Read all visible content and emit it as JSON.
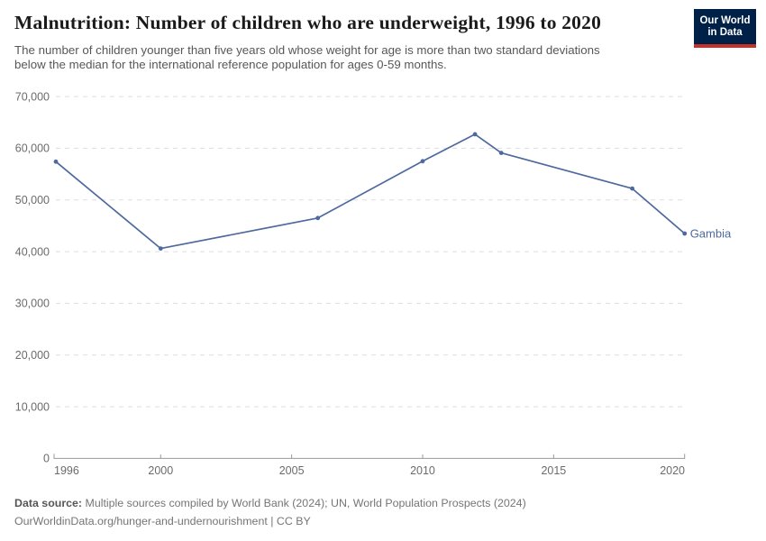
{
  "header": {
    "title": "Malnutrition: Number of children who are underweight, 1996 to 2020",
    "subtitle_line1": "The number of children younger than five years old whose weight for age is more than two standard deviations",
    "subtitle_line2": "below the median for the international reference population for ages 0-59 months."
  },
  "logo": {
    "line1": "Our World",
    "line2": "in Data",
    "bg_color": "#002147",
    "accent_color": "#c7312a"
  },
  "chart_data": {
    "type": "line",
    "title": "Malnutrition: Number of children who are underweight, 1996 to 2020",
    "entity_label": "Gambia",
    "series": [
      {
        "name": "Gambia",
        "color": "#4d699e",
        "x": [
          1996,
          2000,
          2006,
          2010,
          2012,
          2013,
          2018,
          2020
        ],
        "values": [
          57400,
          40600,
          46500,
          57500,
          62700,
          59100,
          52200,
          43500
        ]
      }
    ],
    "xlim": [
      1996,
      2020
    ],
    "ylim": [
      0,
      70000
    ],
    "xticks": [
      1996,
      2000,
      2005,
      2010,
      2015,
      2020
    ],
    "yticks": [
      0,
      10000,
      20000,
      30000,
      40000,
      50000,
      60000,
      70000
    ],
    "grid": "horizontal-dashed",
    "legend_position": "end-of-line-label",
    "colors": {
      "grid": "#dddddd",
      "axis": "#999999",
      "tick_text": "#6b6b6b"
    }
  },
  "footer": {
    "datasource_label": "Data source:",
    "datasource_text": " Multiple sources compiled by World Bank (2024); UN, World Population Prospects (2024)",
    "citation": "OurWorldinData.org/hunger-and-undernourishment | CC BY"
  }
}
